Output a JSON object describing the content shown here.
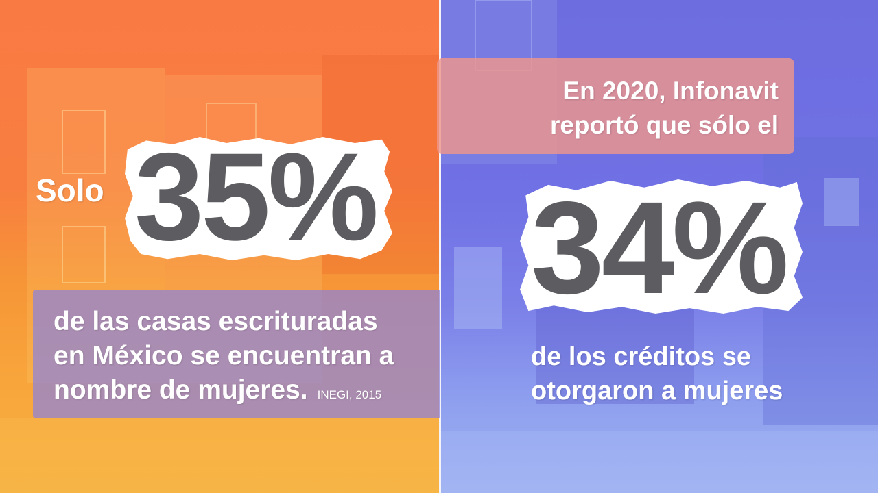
{
  "left": {
    "solo_label": "Solo",
    "percent": "35%",
    "caption_lines": [
      "de las casas escrituradas",
      "en México se encuentran a",
      "nombre de mujeres."
    ],
    "source": "INEGI, 2015"
  },
  "right": {
    "top_lines": [
      "En 2020, Infonavit",
      "reportó que sólo el"
    ],
    "percent": "34%",
    "caption_lines": [
      "de los créditos se",
      "otorgaron a mujeres"
    ]
  },
  "colors": {
    "left_background": "#f87e3f",
    "right_background": "#7071e4",
    "number_color": "#5d5c60",
    "left_caption_box": "#8c82dc",
    "right_top_box": "#ee968c"
  }
}
